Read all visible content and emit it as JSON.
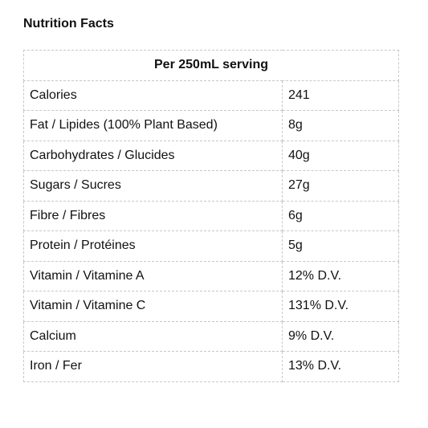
{
  "heading": "Nutrition Facts",
  "table": {
    "header": "Per 250mL serving",
    "rows": [
      {
        "nutrient": "Calories",
        "value": "241"
      },
      {
        "nutrient": "Fat / Lipides (100% Plant Based)",
        "value": "8g"
      },
      {
        "nutrient": "Carbohydrates / Glucides",
        "value": "40g"
      },
      {
        "nutrient": "Sugars / Sucres",
        "value": "27g"
      },
      {
        "nutrient": "Fibre / Fibres",
        "value": "6g"
      },
      {
        "nutrient": "Protein / Protéines",
        "value": "5g"
      },
      {
        "nutrient": "Vitamin / Vitamine A",
        "value": "12% D.V."
      },
      {
        "nutrient": "Vitamin / Vitamine C",
        "value": "131% D.V."
      },
      {
        "nutrient": "Calcium",
        "value": "9% D.V."
      },
      {
        "nutrient": "Iron / Fer",
        "value": "13% D.V."
      }
    ]
  }
}
